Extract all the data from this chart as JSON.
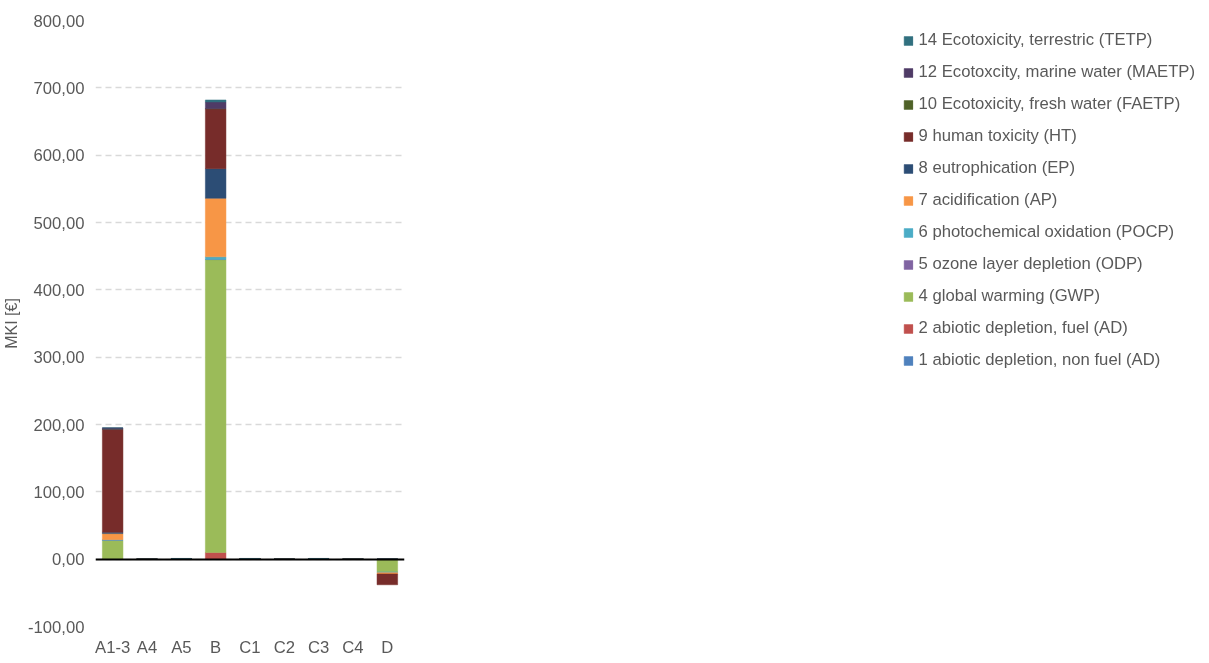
{
  "chart_data": {
    "type": "bar",
    "stacked": true,
    "ylabel": "MKI [€]",
    "categories": [
      "A1-3",
      "A4",
      "A5",
      "B",
      "C1",
      "C2",
      "C3",
      "C4",
      "D"
    ],
    "series": [
      {
        "name": "1 abiotic depletion, non fuel (AD)",
        "color": "#4f81bd",
        "values": [
          0,
          0,
          0,
          0,
          0,
          0,
          0,
          0,
          0
        ]
      },
      {
        "name": "2 abiotic depletion, fuel (AD)",
        "color": "#c0504d",
        "values": [
          0,
          0,
          0,
          10,
          0,
          0,
          0,
          0,
          0
        ]
      },
      {
        "name": "4 global warming (GWP)",
        "color": "#9bbb59",
        "values": [
          28,
          0,
          0,
          435,
          0,
          0,
          0,
          0,
          -19
        ]
      },
      {
        "name": "5 ozone layer depletion (ODP)",
        "color": "#8064a2",
        "values": [
          0,
          0,
          0,
          0,
          0,
          0,
          0,
          0,
          0
        ]
      },
      {
        "name": "6 photochemical oxidation (POCP)",
        "color": "#4bacc6",
        "values": [
          1,
          0,
          0,
          4,
          0,
          0,
          0,
          0,
          -1
        ]
      },
      {
        "name": "7 acidification (AP)",
        "color": "#f79646",
        "values": [
          9,
          0,
          0,
          87,
          0,
          0,
          0,
          0,
          -2
        ]
      },
      {
        "name": "8 eutrophication (EP)",
        "color": "#2c4d75",
        "values": [
          2,
          0,
          0,
          44,
          0,
          0,
          0,
          0,
          0
        ]
      },
      {
        "name": "9 human toxicity (HT)",
        "color": "#772c2a",
        "values": [
          153,
          0,
          1,
          89,
          1,
          0,
          1,
          0,
          -16
        ]
      },
      {
        "name": "10 Ecotoxicity, fresh water (FAETP)",
        "color": "#4f6228",
        "values": [
          0,
          0,
          0,
          0,
          0,
          0,
          0,
          0,
          0
        ]
      },
      {
        "name": "12 Ecotoxcity, marine water (MAETP)",
        "color": "#4f3b66",
        "values": [
          2,
          0,
          0,
          10,
          0,
          0,
          0,
          0,
          0
        ]
      },
      {
        "name": "14 Ecotoxicity, terrestric (TETP)",
        "color": "#31707f",
        "values": [
          0,
          0,
          0,
          3,
          0,
          0,
          0,
          0,
          0
        ]
      }
    ],
    "ylim": [
      -100,
      800
    ],
    "yticks": [
      {
        "value": -100,
        "label": "-100,00"
      },
      {
        "value": 0,
        "label": "0,00"
      },
      {
        "value": 100,
        "label": "100,00"
      },
      {
        "value": 200,
        "label": "200,00"
      },
      {
        "value": 300,
        "label": "300,00"
      },
      {
        "value": 400,
        "label": "400,00"
      },
      {
        "value": 500,
        "label": "500,00"
      },
      {
        "value": 600,
        "label": "600,00"
      },
      {
        "value": 700,
        "label": "700,00"
      },
      {
        "value": 800,
        "label": "800,00"
      }
    ],
    "grid": "y",
    "legend": "right"
  }
}
